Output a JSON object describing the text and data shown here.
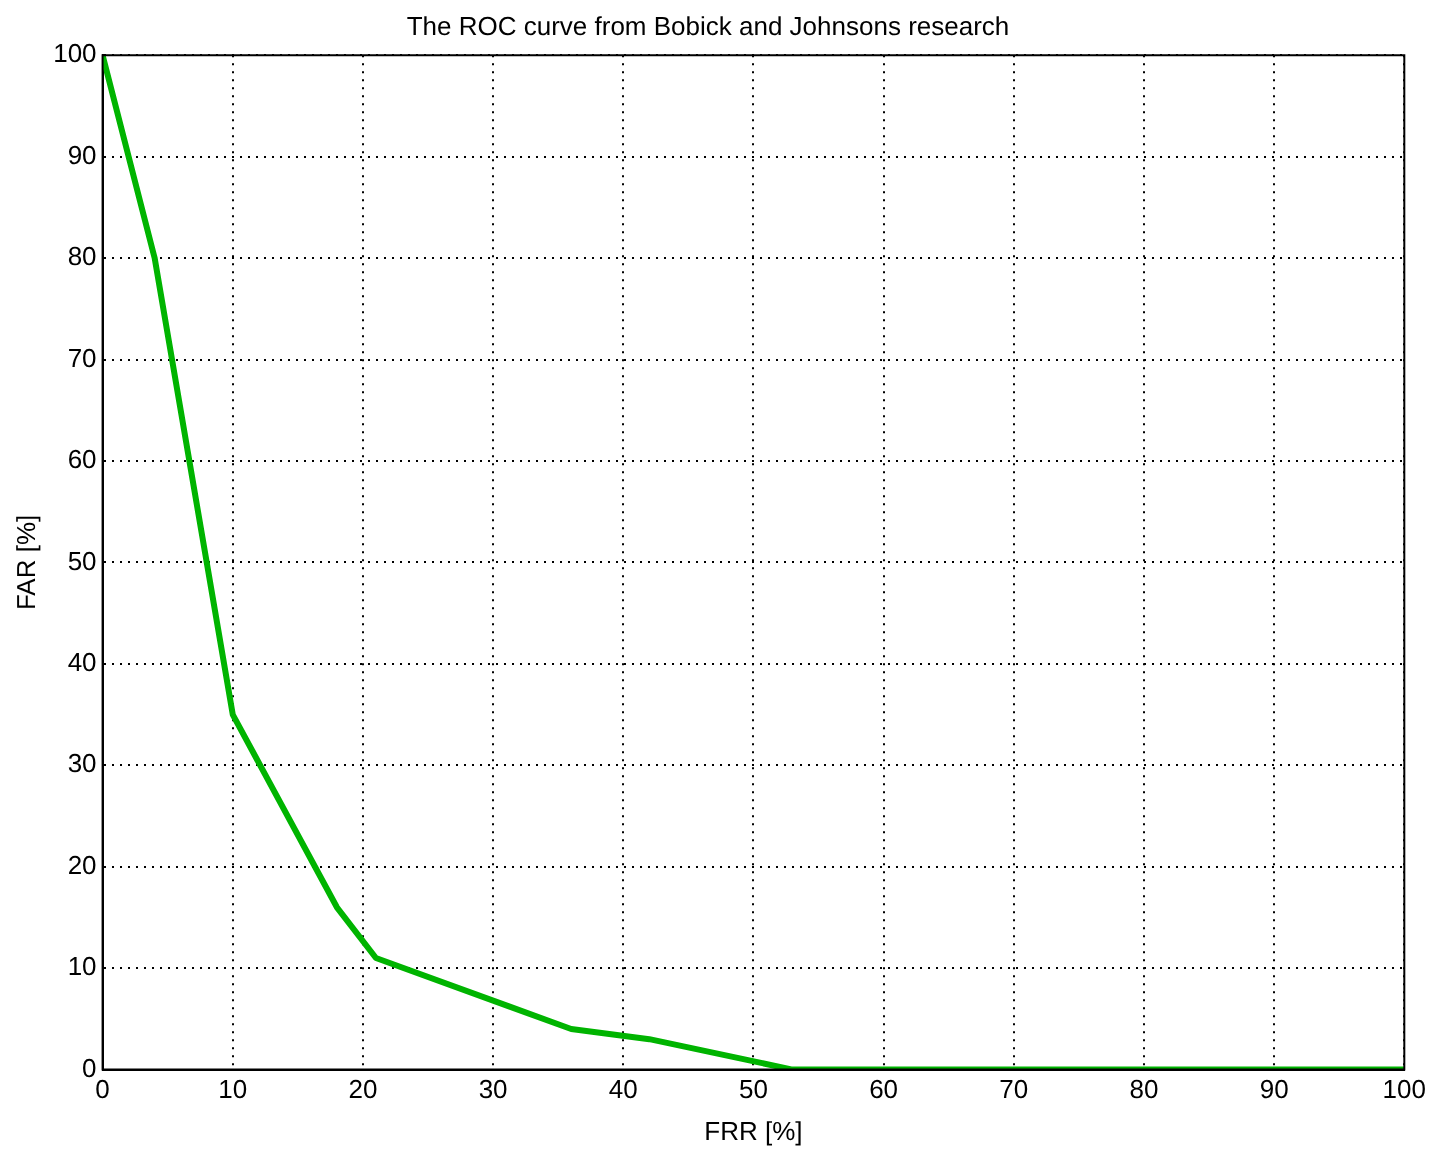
{
  "chart_data": {
    "type": "line",
    "title": "The ROC curve from Bobick and Johnsons research",
    "xlabel": "FRR [%]",
    "ylabel": "FAR [%]",
    "series": [
      {
        "color": "#00b400",
        "x": [
          0,
          4,
          10,
          18,
          21,
          36,
          42,
          53,
          100
        ],
        "values": [
          100,
          80,
          35,
          16,
          11,
          4,
          3,
          0,
          0
        ]
      }
    ],
    "xlim": [
      0,
      100
    ],
    "xticks": [
      0,
      10,
      20,
      30,
      40,
      50,
      60,
      70,
      80,
      90,
      100
    ],
    "ylim": [
      0,
      100
    ],
    "yticks": [
      0,
      10,
      20,
      30,
      40,
      50,
      60,
      70,
      80,
      90,
      100
    ],
    "grid": true,
    "legend": false,
    "marker": "none",
    "line_style": "solid"
  }
}
